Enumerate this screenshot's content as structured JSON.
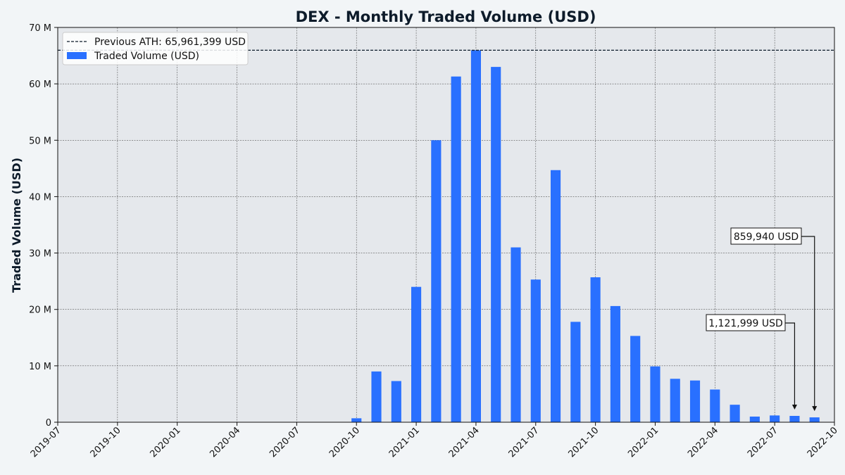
{
  "chart_data": {
    "type": "bar",
    "title": "DEX - Monthly Traded Volume (USD)",
    "xlabel": "",
    "ylabel": "Traded Volume (USD)",
    "ylim": [
      0,
      70000000
    ],
    "y_ticks": [
      0,
      10000000,
      20000000,
      30000000,
      40000000,
      50000000,
      60000000,
      70000000
    ],
    "y_tick_labels": [
      "0",
      "10 M",
      "20 M",
      "30 M",
      "40 M",
      "50 M",
      "60 M",
      "70 M"
    ],
    "x_range": [
      "2019-07",
      "2022-10"
    ],
    "x_ticks": [
      "2019-07",
      "2019-10",
      "2020-01",
      "2020-04",
      "2020-07",
      "2020-10",
      "2021-01",
      "2021-04",
      "2021-07",
      "2021-10",
      "2022-01",
      "2022-04",
      "2022-07",
      "2022-10"
    ],
    "grid": true,
    "legend_position": "top-left",
    "bar_color": "#2970ff",
    "ath_color": "#0d1b2a",
    "series": [
      {
        "name": "Traded Volume (USD)",
        "x": [
          "2020-10",
          "2020-11",
          "2020-12",
          "2021-01",
          "2021-02",
          "2021-03",
          "2021-04",
          "2021-05",
          "2021-06",
          "2021-07",
          "2021-08",
          "2021-09",
          "2021-10",
          "2021-11",
          "2021-12",
          "2022-01",
          "2022-02",
          "2022-03",
          "2022-04",
          "2022-05",
          "2022-06",
          "2022-07",
          "2022-08",
          "2022-09"
        ],
        "values": [
          700000,
          9000000,
          7300000,
          24000000,
          50000000,
          61300000,
          65961399,
          63000000,
          31000000,
          25300000,
          44700000,
          17800000,
          25700000,
          20600000,
          15300000,
          9900000,
          7700000,
          7400000,
          5800000,
          3100000,
          1000000,
          1200000,
          1121999,
          859940
        ]
      }
    ],
    "reference_line": {
      "label": "Previous ATH: 65,961,399 USD",
      "value": 65961399
    },
    "annotations": [
      {
        "text": "1,121,999 USD",
        "x": "2022-08",
        "value": 1121999
      },
      {
        "text": "859,940 USD",
        "x": "2022-09",
        "value": 859940
      }
    ]
  }
}
